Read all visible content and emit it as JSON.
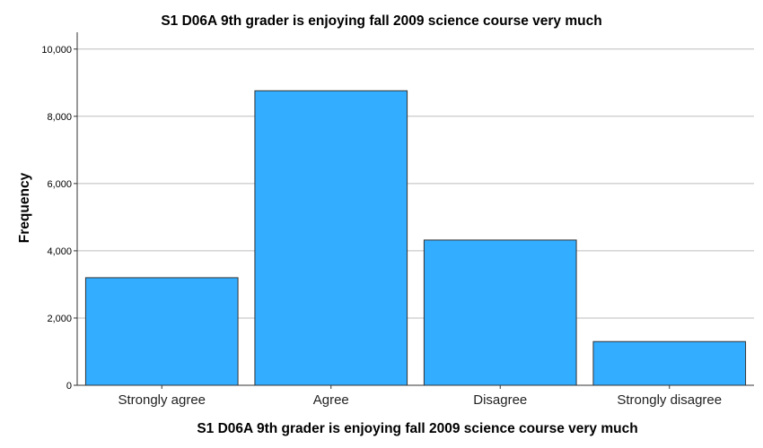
{
  "chart_data": {
    "type": "bar",
    "title": "S1 D06A 9th grader is enjoying fall 2009 science course very much",
    "xlabel": "S1 D06A 9th grader is enjoying fall 2009 science course very much",
    "ylabel": "Frequency",
    "categories": [
      "Strongly agree",
      "Agree",
      "Disagree",
      "Strongly disagree"
    ],
    "values": [
      3200,
      8760,
      4320,
      1300
    ],
    "ylim": [
      0,
      10500
    ],
    "yticks": [
      0,
      2000,
      4000,
      6000,
      8000,
      10000
    ],
    "ytick_labels": [
      "0",
      "2,000",
      "4,000",
      "6,000",
      "8,000",
      "10,000"
    ],
    "grid": true,
    "bar_color": "#33adff"
  }
}
